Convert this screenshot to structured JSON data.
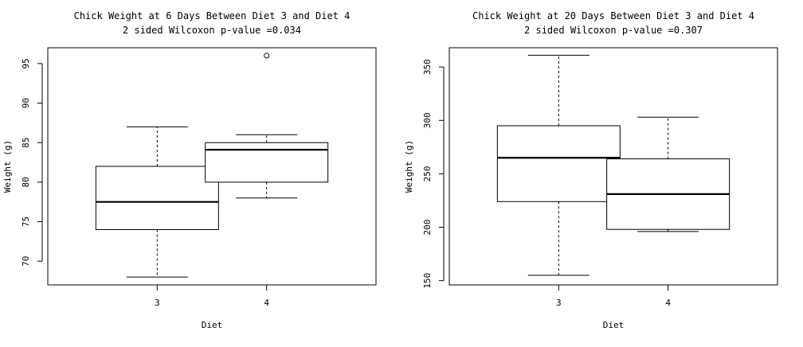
{
  "chart_data": [
    {
      "type": "boxplot",
      "title": "Chick Weight at 6 Days Between Diet 3 and Diet 4",
      "subtitle": "2 sided Wilcoxon p-value =0.034",
      "xlabel": "Diet",
      "ylabel": "Weight (g)",
      "categories": [
        "3",
        "4"
      ],
      "ylim": [
        67,
        97
      ],
      "yticks": [
        "70",
        "75",
        "80",
        "85",
        "90",
        "95"
      ],
      "boxes": [
        {
          "category": "3",
          "min": 68,
          "q1": 74,
          "median": 77.5,
          "q3": 82,
          "max": 87,
          "outliers": []
        },
        {
          "category": "4",
          "min": 78,
          "q1": 80,
          "median": 84.1,
          "q3": 85,
          "max": 86,
          "outliers": [
            96
          ]
        }
      ]
    },
    {
      "type": "boxplot",
      "title": "Chick Weight at 20 Days Between Diet 3 and Diet 4",
      "subtitle": "2 sided Wilcoxon p-value =0.307",
      "xlabel": "Diet",
      "ylabel": "Weight (g)",
      "categories": [
        "3",
        "4"
      ],
      "ylim": [
        146,
        368
      ],
      "yticks": [
        "150",
        "200",
        "250",
        "300",
        "350"
      ],
      "boxes": [
        {
          "category": "3",
          "min": 155,
          "q1": 224,
          "median": 265,
          "q3": 295,
          "max": 361,
          "outliers": []
        },
        {
          "category": "4",
          "min": 196,
          "q1": 198,
          "median": 231,
          "q3": 264,
          "max": 303,
          "outliers": []
        }
      ]
    }
  ]
}
